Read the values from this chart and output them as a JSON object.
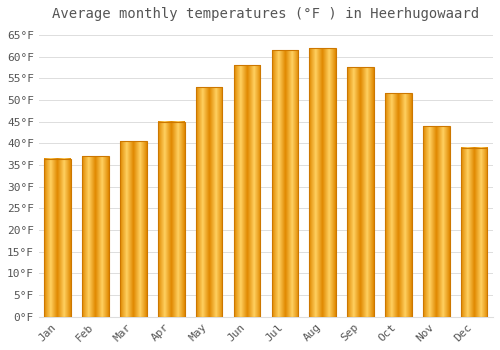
{
  "title": "Average monthly temperatures (°F ) in Heerhugowaard",
  "months": [
    "Jan",
    "Feb",
    "Mar",
    "Apr",
    "May",
    "Jun",
    "Jul",
    "Aug",
    "Sep",
    "Oct",
    "Nov",
    "Dec"
  ],
  "values": [
    36.5,
    37.0,
    40.5,
    45.0,
    53.0,
    58.0,
    61.5,
    62.0,
    57.5,
    51.5,
    44.0,
    39.0
  ],
  "bar_color_main": "#FFA500",
  "bar_color_light": "#FFD060",
  "bar_color_dark": "#E08000",
  "background_color": "#FFFFFF",
  "grid_color": "#DDDDDD",
  "text_color": "#555555",
  "ylim": [
    0,
    67
  ],
  "yticks": [
    0,
    5,
    10,
    15,
    20,
    25,
    30,
    35,
    40,
    45,
    50,
    55,
    60,
    65
  ],
  "ytick_labels": [
    "0°F",
    "5°F",
    "10°F",
    "15°F",
    "20°F",
    "25°F",
    "30°F",
    "35°F",
    "40°F",
    "45°F",
    "50°F",
    "55°F",
    "60°F",
    "65°F"
  ],
  "title_fontsize": 10,
  "tick_fontsize": 8
}
